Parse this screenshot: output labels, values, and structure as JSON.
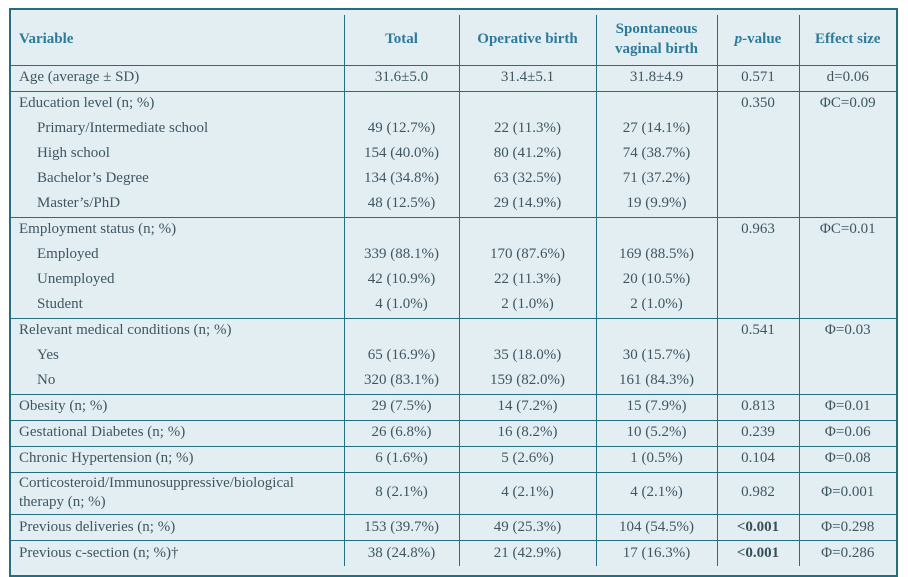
{
  "theme": {
    "table_background": "#e3eef3",
    "border_color": "#256e82",
    "header_text_color": "#2e7a99",
    "body_text_color": "#3f5660",
    "page_background": "#ffffff"
  },
  "table": {
    "columns": [
      {
        "label": "Variable",
        "align": "left"
      },
      {
        "label": "Total"
      },
      {
        "label": "Operative birth"
      },
      {
        "label": "Spontaneous vaginal birth"
      },
      {
        "label": "p-value",
        "italicFirst": true
      },
      {
        "label": "Effect size"
      }
    ],
    "groups": [
      {
        "rows": [
          {
            "label": "Age (average ± SD)",
            "total": "31.6±5.0",
            "operative": "31.4±5.1",
            "spontaneous": "31.8±4.9",
            "p": "0.571",
            "effect": "d=0.06"
          }
        ]
      },
      {
        "rows": [
          {
            "label": "Education level (n; %)",
            "p": "0.350",
            "effect": "ΦC=0.09"
          },
          {
            "label": "Primary/Intermediate school",
            "indent": true,
            "total": "49 (12.7%)",
            "operative": "22 (11.3%)",
            "spontaneous": "27 (14.1%)"
          },
          {
            "label": "High school",
            "indent": true,
            "total": "154 (40.0%)",
            "operative": "80 (41.2%)",
            "spontaneous": "74 (38.7%)"
          },
          {
            "label": "Bachelor’s Degree",
            "indent": true,
            "total": "134 (34.8%)",
            "operative": "63 (32.5%)",
            "spontaneous": "71 (37.2%)"
          },
          {
            "label": "Master’s/PhD",
            "indent": true,
            "total": "48 (12.5%)",
            "operative": "29 (14.9%)",
            "spontaneous": "19 (9.9%)"
          }
        ]
      },
      {
        "rows": [
          {
            "label": "Employment status (n; %)",
            "p": "0.963",
            "effect": "ΦC=0.01"
          },
          {
            "label": "Employed",
            "indent": true,
            "total": "339 (88.1%)",
            "operative": "170 (87.6%)",
            "spontaneous": "169 (88.5%)"
          },
          {
            "label": "Unemployed",
            "indent": true,
            "total": "42 (10.9%)",
            "operative": "22 (11.3%)",
            "spontaneous": "20 (10.5%)"
          },
          {
            "label": "Student",
            "indent": true,
            "total": "4 (1.0%)",
            "operative": "2 (1.0%)",
            "spontaneous": "2 (1.0%)"
          }
        ]
      },
      {
        "rows": [
          {
            "label": "Relevant medical conditions (n; %)",
            "p": "0.541",
            "effect": "Φ=0.03"
          },
          {
            "label": "Yes",
            "indent": true,
            "total": "65 (16.9%)",
            "operative": "35 (18.0%)",
            "spontaneous": "30 (15.7%)"
          },
          {
            "label": "No",
            "indent": true,
            "total": "320 (83.1%)",
            "operative": "159 (82.0%)",
            "spontaneous": "161 (84.3%)"
          }
        ]
      },
      {
        "rows": [
          {
            "label": "Obesity (n; %)",
            "total": "29 (7.5%)",
            "operative": "14 (7.2%)",
            "spontaneous": "15 (7.9%)",
            "p": "0.813",
            "effect": "Φ=0.01"
          }
        ]
      },
      {
        "rows": [
          {
            "label": "Gestational Diabetes (n; %)",
            "total": "26 (6.8%)",
            "operative": "16 (8.2%)",
            "spontaneous": "10 (5.2%)",
            "p": "0.239",
            "effect": "Φ=0.06"
          }
        ]
      },
      {
        "rows": [
          {
            "label": "Chronic Hypertension (n; %)",
            "total": "6 (1.6%)",
            "operative": "5 (2.6%)",
            "spontaneous": "1 (0.5%)",
            "p": "0.104",
            "effect": "Φ=0.08"
          }
        ]
      },
      {
        "rows": [
          {
            "label": "Corticosteroid/Immunosuppressive/biological therapy (n; %)",
            "total": "8 (2.1%)",
            "operative": "4 (2.1%)",
            "spontaneous": "4 (2.1%)",
            "p": "0.982",
            "effect": "Φ=0.001"
          }
        ]
      },
      {
        "rows": [
          {
            "label": "Previous deliveries (n; %)",
            "total": "153 (39.7%)",
            "operative": "49 (25.3%)",
            "spontaneous": "104 (54.5%)",
            "p": "<0.001",
            "strong": true,
            "effect": "Φ=0.298"
          }
        ]
      },
      {
        "rows": [
          {
            "label": "Previous c-section (n; %)†",
            "total": "38 (24.8%)",
            "operative": "21 (42.9%)",
            "spontaneous": "17 (16.3%)",
            "p": "<0.001",
            "strong": true,
            "effect": "Φ=0.286"
          }
        ]
      }
    ]
  }
}
